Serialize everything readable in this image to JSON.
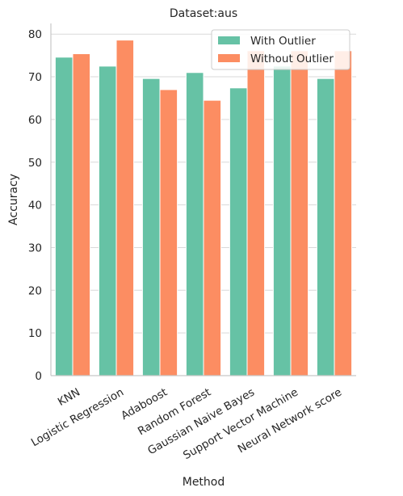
{
  "chart_data": {
    "type": "bar",
    "title": "Dataset:aus",
    "xlabel": "Method",
    "ylabel": "Accuracy",
    "categories": [
      "KNN",
      "Logistic Regression",
      "Adaboost",
      "Random Forest",
      "Gaussian Naive Bayes",
      "Support Vector Machine",
      "Neural Network score"
    ],
    "series": [
      {
        "name": "With Outlier",
        "color": "#66c2a5",
        "values": [
          74.6,
          72.5,
          69.6,
          71.0,
          67.4,
          72.5,
          69.6
        ]
      },
      {
        "name": "Without Outlier",
        "color": "#fc8d62",
        "values": [
          75.4,
          78.6,
          67.0,
          64.5,
          76.1,
          76.1,
          76.1
        ]
      }
    ],
    "ylim": [
      0,
      82.5
    ],
    "yticks": [
      0,
      10,
      20,
      30,
      40,
      50,
      60,
      70,
      80
    ],
    "grid": "y",
    "legend": "top-right"
  }
}
